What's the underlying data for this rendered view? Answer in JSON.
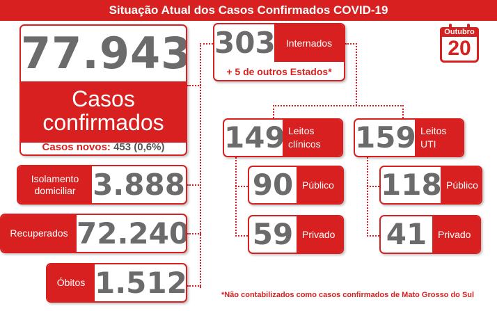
{
  "title": "Situação Atual dos Casos Confirmados COVID-19",
  "calendar": {
    "month": "Outubro",
    "day": "20"
  },
  "cases": {
    "total": "77.943",
    "label": "Casos confirmados",
    "new_label": "Casos novos:",
    "new_value": "453 (0,6%)"
  },
  "isolamento": {
    "label": "Isolamento domiciliar",
    "value": "3.888"
  },
  "recuperados": {
    "label": "Recuperados",
    "value": "72.240"
  },
  "obitos": {
    "label": "Óbitos",
    "value": "1.512"
  },
  "internados": {
    "value": "303",
    "label": "Internados",
    "note": "+ 5 de outros Estados*"
  },
  "leitos_clinicos": {
    "value": "149",
    "label": "Leitos clínicos",
    "publico": {
      "value": "90",
      "label": "Público"
    },
    "privado": {
      "value": "59",
      "label": "Privado"
    }
  },
  "leitos_uti": {
    "value": "159",
    "label": "Leitos UTI",
    "publico": {
      "value": "118",
      "label": "Público"
    },
    "privado": {
      "value": "41",
      "label": "Privado"
    }
  },
  "footnote": "*Não contabilizados como casos confirmados de Mato Grosso do Sul",
  "colors": {
    "accent": "#d7201f",
    "number": "#6b6b6b"
  }
}
